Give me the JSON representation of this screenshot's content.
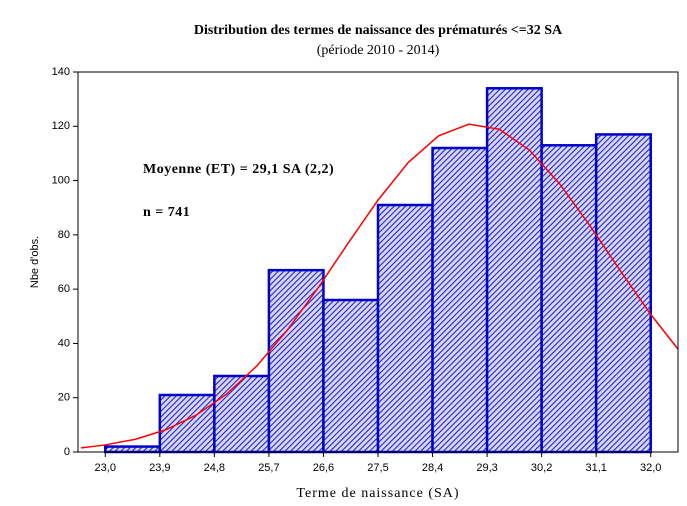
{
  "chart_data": {
    "type": "histogram",
    "title": "Distribution des termes de naissance des prématurés <=32 SA",
    "subtitle": "(période 2010 - 2014)",
    "x_label": "Terme de naissance (SA)",
    "y_label": "Nbe d'obs.",
    "annotations": [
      "Moyenne (ET) = 29,1 SA (2,2)",
      "n = 741"
    ],
    "bins": [
      23.0,
      23.9,
      24.8,
      25.7,
      26.6,
      27.5,
      28.4,
      29.3,
      30.2,
      31.1,
      32.0
    ],
    "values": [
      2,
      21,
      28,
      67,
      56,
      91,
      112,
      134,
      113,
      117
    ],
    "color": "#0000cc",
    "curve": {
      "color": "#ff0000",
      "x": [
        22.6,
        23.0,
        23.5,
        24.0,
        24.5,
        25.0,
        25.5,
        26.0,
        26.5,
        27.0,
        27.5,
        28.0,
        28.5,
        29.0,
        29.5,
        30.0,
        30.5,
        31.0,
        31.5,
        32.0,
        32.45
      ],
      "values": [
        1.5,
        2.6,
        4.7,
        8.2,
        13.6,
        21.3,
        31.7,
        44.8,
        60.1,
        76.7,
        92.8,
        106.7,
        116.5,
        120.8,
        118.9,
        111.2,
        98.7,
        83.3,
        66.7,
        50.7,
        37.9
      ]
    },
    "xlim": [
      22.55,
      32.45
    ],
    "xticks": [
      {
        "value": 23.0,
        "label": "23,0"
      },
      {
        "value": 23.9,
        "label": "23,9"
      },
      {
        "value": 24.8,
        "label": "24,8"
      },
      {
        "value": 25.7,
        "label": "25,7"
      },
      {
        "value": 26.6,
        "label": "26,6"
      },
      {
        "value": 27.5,
        "label": "27,5"
      },
      {
        "value": 28.4,
        "label": "28,4"
      },
      {
        "value": 29.3,
        "label": "29,3"
      },
      {
        "value": 30.2,
        "label": "30,2"
      },
      {
        "value": 31.1,
        "label": "31,1"
      },
      {
        "value": 32.0,
        "label": "32,0"
      }
    ],
    "ylim": [
      0,
      140
    ],
    "yticks": [
      0,
      20,
      40,
      60,
      80,
      100,
      120,
      140
    ],
    "grid": false
  }
}
